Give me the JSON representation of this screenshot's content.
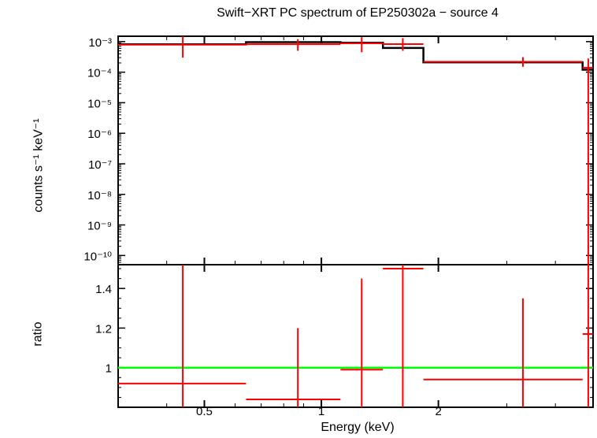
{
  "chart_data": {
    "type": "spectrum",
    "title": "Swift−XRT PC spectrum of EP250302a − source 4",
    "xlabel": "Energy (keV)",
    "x_scale": "log",
    "xlim": [
      0.3,
      5.0
    ],
    "x_ticks": [
      {
        "value": 0.5,
        "label": "0.5"
      },
      {
        "value": 1,
        "label": "1"
      },
      {
        "value": 2,
        "label": "2"
      }
    ],
    "colors": {
      "data": "#ff0000",
      "model": "#000000",
      "unity": "#00ff00",
      "frame": "#000000"
    },
    "top_panel": {
      "ylabel": "counts s⁻¹ keV⁻¹",
      "y_scale": "log",
      "ylim": [
        5e-11,
        0.0015
      ],
      "y_ticks": [
        {
          "value": 0.001,
          "label": "10⁻³"
        },
        {
          "value": 0.0001,
          "label": "10⁻⁴"
        },
        {
          "value": 1e-05,
          "label": "10⁻⁵"
        },
        {
          "value": 1e-06,
          "label": "10⁻⁶"
        },
        {
          "value": 1e-07,
          "label": "10⁻⁷"
        },
        {
          "value": 1e-08,
          "label": "10⁻⁸"
        },
        {
          "value": 1e-09,
          "label": "10⁻⁹"
        },
        {
          "value": 1e-10,
          "label": "10⁻¹⁰"
        }
      ],
      "data": [
        {
          "x": 0.44,
          "x_lo": 0.3,
          "x_hi": 0.64,
          "y": 0.00079,
          "y_lo": 0.0003,
          "y_hi": 0.0015
        },
        {
          "x": 0.87,
          "x_lo": 0.64,
          "x_hi": 1.12,
          "y": 0.00082,
          "y_lo": 0.0005,
          "y_hi": 0.0012
        },
        {
          "x": 1.27,
          "x_lo": 1.12,
          "x_hi": 1.44,
          "y": 0.00088,
          "y_lo": 0.00045,
          "y_hi": 0.0014
        },
        {
          "x": 1.62,
          "x_lo": 1.44,
          "x_hi": 1.83,
          "y": 0.00083,
          "y_lo": 0.0005,
          "y_hi": 0.0013
        },
        {
          "x": 3.3,
          "x_lo": 1.83,
          "x_hi": 4.7,
          "y": 0.00022,
          "y_lo": 0.00015,
          "y_hi": 0.00031
        },
        {
          "x": 4.86,
          "x_lo": 4.7,
          "x_hi": 5.0,
          "y": 0.00014,
          "y_lo": 5e-11,
          "y_hi": 0.00028
        }
      ],
      "model": {
        "edges": [
          0.3,
          0.64,
          1.12,
          1.44,
          1.83,
          4.7,
          5.0
        ],
        "values": [
          0.00082,
          0.00096,
          0.00092,
          0.00062,
          0.00021,
          0.00012
        ]
      }
    },
    "bottom_panel": {
      "ylabel": "ratio",
      "y_scale": "linear",
      "ylim": [
        0.8,
        1.52
      ],
      "y_ticks": [
        {
          "value": 1,
          "label": "1"
        },
        {
          "value": 1.2,
          "label": "1.2"
        },
        {
          "value": 1.4,
          "label": "1.4"
        }
      ],
      "unity_line": 1,
      "data": [
        {
          "x": 0.44,
          "x_lo": 0.3,
          "x_hi": 0.64,
          "y": 0.92,
          "y_lo": 0.8,
          "y_hi": 1.52
        },
        {
          "x": 0.87,
          "x_lo": 0.64,
          "x_hi": 1.12,
          "y": 0.84,
          "y_lo": 0.8,
          "y_hi": 1.2
        },
        {
          "x": 1.27,
          "x_lo": 1.12,
          "x_hi": 1.44,
          "y": 0.99,
          "y_lo": 0.8,
          "y_hi": 1.45
        },
        {
          "x": 1.62,
          "x_lo": 1.44,
          "x_hi": 1.83,
          "y": 1.5,
          "y_lo": 0.8,
          "y_hi": 1.52
        },
        {
          "x": 3.3,
          "x_lo": 1.83,
          "x_hi": 4.7,
          "y": 0.94,
          "y_lo": 0.8,
          "y_hi": 1.35
        },
        {
          "x": 4.86,
          "x_lo": 4.7,
          "x_hi": 5.0,
          "y": 1.17,
          "y_lo": 0.8,
          "y_hi": 1.52
        }
      ]
    }
  }
}
